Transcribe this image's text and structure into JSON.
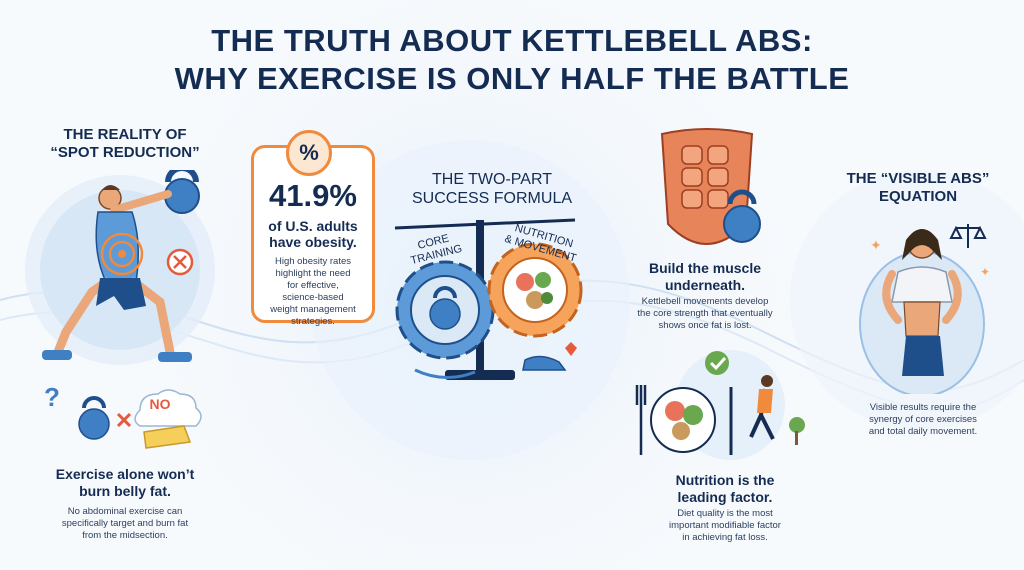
{
  "title": {
    "line1": "THE TRUTH ABOUT KETTLEBELL ABS:",
    "line2": "WHY EXERCISE IS ONLY HALF THE BATTLE"
  },
  "spot_reduction": {
    "heading_line1": "THE REALITY OF",
    "heading_line2": "“SPOT REDUCTION”",
    "no_label": "NO",
    "caption_line1": "Exercise alone won’t",
    "caption_line2": "burn belly fat.",
    "desc_line1": "No abdominal exercise can",
    "desc_line2": "specifically target and burn fat",
    "desc_line3": "from the midsection."
  },
  "obesity_stat": {
    "icon_text": "%",
    "value": "41.9%",
    "label_line1": "of U.S. adults",
    "label_line2": "have obesity.",
    "desc_line1": "High obesity rates",
    "desc_line2": "highlight the need",
    "desc_line3": "for effective,",
    "desc_line4": "science-based",
    "desc_line5": "weight management",
    "desc_line6": "strategies."
  },
  "formula": {
    "heading_line1": "THE TWO-PART",
    "heading_line2": "SUCCESS FORMULA",
    "left_label_line1": "CORE",
    "left_label_line2": "TRAINING",
    "right_label_line1": "NUTRITION",
    "right_label_line2": "& MOVEMENT"
  },
  "build_muscle": {
    "caption_line1": "Build the muscle",
    "caption_line2": "underneath.",
    "desc_line1": "Kettlebell movements develop",
    "desc_line2": "the core strength that eventually",
    "desc_line3": "shows once fat is lost."
  },
  "nutrition": {
    "caption_line1": "Nutrition is the",
    "caption_line2": "leading factor.",
    "desc_line1": "Diet quality is the most",
    "desc_line2": "important modifiable factor",
    "desc_line3": "in achieving fat loss."
  },
  "visible_abs": {
    "heading_line1": "THE “VISIBLE ABS”",
    "heading_line2": "EQUATION",
    "desc_line1": "Visible results require the",
    "desc_line2": "synergy of core exercises",
    "desc_line3": "and total daily movement."
  },
  "colors": {
    "navy": "#142c52",
    "orange": "#f08a3c",
    "blue": "#3f7fc4",
    "light_blue": "#dbe9f7"
  }
}
